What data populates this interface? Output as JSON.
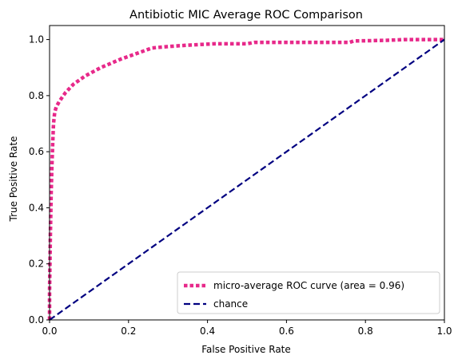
{
  "chart_data": {
    "type": "line",
    "title": "Antibiotic MIC Average ROC Comparison",
    "xlabel": "False Positive Rate",
    "ylabel": "True Positive Rate",
    "xlim": [
      0.0,
      1.0
    ],
    "ylim": [
      0.0,
      1.05
    ],
    "xticks": [
      "0.0",
      "0.2",
      "0.4",
      "0.6",
      "0.8",
      "1.0"
    ],
    "yticks": [
      "0.0",
      "0.2",
      "0.4",
      "0.6",
      "0.8",
      "1.0"
    ],
    "grid": false,
    "legend_position": "lower-right",
    "series": [
      {
        "name": "micro-average ROC curve (area = 0.96)",
        "color": "#e7298a",
        "style": "dotted",
        "x": [
          0.0,
          0.0,
          0.002,
          0.004,
          0.006,
          0.008,
          0.01,
          0.013,
          0.017,
          0.025,
          0.04,
          0.06,
          0.09,
          0.13,
          0.18,
          0.22,
          0.26,
          0.3,
          0.35,
          0.42,
          0.5,
          0.52,
          0.6,
          0.7,
          0.76,
          0.77,
          0.85,
          0.9,
          0.95,
          1.0
        ],
        "y": [
          0.0,
          0.1,
          0.3,
          0.45,
          0.55,
          0.63,
          0.7,
          0.74,
          0.76,
          0.78,
          0.81,
          0.84,
          0.87,
          0.9,
          0.93,
          0.95,
          0.97,
          0.975,
          0.98,
          0.985,
          0.985,
          0.99,
          0.99,
          0.99,
          0.99,
          0.995,
          0.997,
          1.0,
          1.0,
          1.0
        ]
      },
      {
        "name": "chance",
        "color": "#000080",
        "style": "dashed",
        "x": [
          0.0,
          1.0
        ],
        "y": [
          0.0,
          1.0
        ]
      }
    ]
  }
}
